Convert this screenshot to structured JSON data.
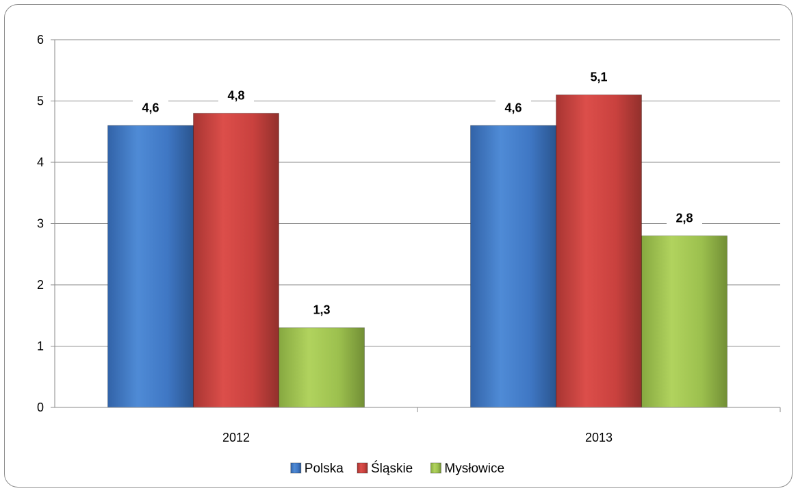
{
  "chart_data": {
    "type": "bar",
    "title": "",
    "xlabel": "",
    "ylabel": "",
    "ylim": [
      0,
      6
    ],
    "yticks": [
      "0",
      "1",
      "2",
      "3",
      "4",
      "5",
      "6"
    ],
    "categories": [
      "2012",
      "2013"
    ],
    "series": [
      {
        "name": "Polska",
        "color": "#4a7ebb",
        "values": [
          4.6,
          4.6
        ],
        "labels": [
          "4,6",
          "4,6"
        ]
      },
      {
        "name": "Śląskie",
        "color": "#be4b48",
        "values": [
          4.8,
          5.1
        ],
        "labels": [
          "4,8",
          "5,1"
        ]
      },
      {
        "name": "Mysłowice",
        "color": "#98b954",
        "values": [
          1.3,
          2.8
        ],
        "labels": [
          "1,3",
          "2,8"
        ]
      }
    ],
    "grid": true,
    "legend_position": "bottom"
  }
}
